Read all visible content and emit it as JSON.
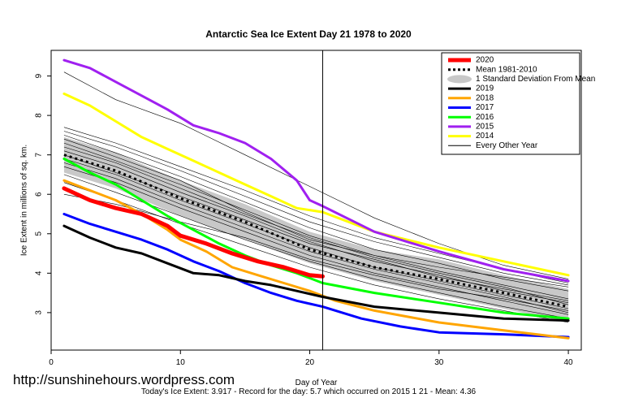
{
  "chart_data": {
    "type": "line",
    "title": "Antarctic Sea Ice Extent Day 21 1978 to 2020",
    "xlabel": "Day of Year",
    "ylabel": "Ice Extent in millions of sq. km.",
    "xlim": [
      0,
      41
    ],
    "ylim": [
      2.05,
      9.65
    ],
    "x_ticks": [
      0,
      10,
      20,
      30,
      40
    ],
    "y_ticks": [
      3,
      4,
      5,
      6,
      7,
      8,
      9
    ],
    "current_day_marker": 21,
    "legend_position": "top-right",
    "legend": [
      {
        "label": "2020",
        "color": "#ff0000",
        "style": "thick"
      },
      {
        "label": "Mean 1981-2010",
        "color": "#000000",
        "style": "dotted"
      },
      {
        "label": "1 Standard Deviation From Mean",
        "color": "#c8c8c8",
        "style": "band"
      },
      {
        "label": "2019",
        "color": "#000000",
        "style": "solid"
      },
      {
        "label": "2018",
        "color": "#ffa500",
        "style": "solid"
      },
      {
        "label": "2017",
        "color": "#0000ff",
        "style": "solid"
      },
      {
        "label": "2016",
        "color": "#00ff00",
        "style": "solid"
      },
      {
        "label": "2015",
        "color": "#a020f0",
        "style": "solid"
      },
      {
        "label": "2014",
        "color": "#ffff00",
        "style": "solid"
      },
      {
        "label": "Every Other Year",
        "color": "#000000",
        "style": "thin"
      }
    ],
    "mean": {
      "x": [
        1,
        5,
        10,
        15,
        20,
        25,
        30,
        35,
        40
      ],
      "y": [
        7.0,
        6.6,
        5.9,
        5.3,
        4.6,
        4.15,
        3.85,
        3.5,
        3.15
      ]
    },
    "std_band": {
      "x": [
        1,
        5,
        10,
        15,
        20,
        25,
        30,
        35,
        40
      ],
      "upper": [
        7.45,
        7.05,
        6.35,
        5.75,
        5.05,
        4.6,
        4.35,
        3.95,
        3.6
      ],
      "lower": [
        6.55,
        6.15,
        5.45,
        4.85,
        4.25,
        3.8,
        3.45,
        3.1,
        2.75
      ]
    },
    "series": [
      {
        "name": "2020",
        "color": "#ff0000",
        "width": 5,
        "x": [
          1,
          3,
          5,
          7,
          9,
          10,
          12,
          14,
          16,
          18,
          20,
          21
        ],
        "y": [
          6.15,
          5.85,
          5.65,
          5.5,
          5.2,
          4.95,
          4.75,
          4.5,
          4.3,
          4.15,
          3.95,
          3.92
        ]
      },
      {
        "name": "2019",
        "color": "#000000",
        "width": 3,
        "x": [
          1,
          3,
          5,
          7,
          9,
          11,
          13,
          15,
          17,
          19,
          21,
          25,
          30,
          35,
          40
        ],
        "y": [
          5.2,
          4.9,
          4.65,
          4.5,
          4.25,
          4.0,
          3.95,
          3.8,
          3.7,
          3.55,
          3.4,
          3.15,
          3.0,
          2.85,
          2.8
        ]
      },
      {
        "name": "2018",
        "color": "#ffa500",
        "width": 3,
        "x": [
          1,
          3,
          5,
          7,
          9,
          10,
          12,
          14,
          16,
          18,
          20,
          22,
          25,
          30,
          35,
          40
        ],
        "y": [
          6.35,
          6.1,
          5.85,
          5.5,
          5.1,
          4.85,
          4.55,
          4.15,
          3.95,
          3.75,
          3.55,
          3.3,
          3.05,
          2.75,
          2.55,
          2.35
        ]
      },
      {
        "name": "2017",
        "color": "#0000ff",
        "width": 3,
        "x": [
          1,
          3,
          5,
          7,
          9,
          11,
          13,
          15,
          17,
          19,
          21,
          24,
          27,
          30,
          35,
          40
        ],
        "y": [
          5.5,
          5.25,
          5.05,
          4.85,
          4.6,
          4.3,
          4.05,
          3.75,
          3.5,
          3.3,
          3.15,
          2.85,
          2.65,
          2.5,
          2.45,
          2.38
        ]
      },
      {
        "name": "2016",
        "color": "#00ff00",
        "width": 3,
        "x": [
          1,
          3,
          5,
          7,
          9,
          11,
          13,
          15,
          17,
          19,
          21,
          25,
          30,
          35,
          40
        ],
        "y": [
          6.9,
          6.55,
          6.25,
          5.85,
          5.45,
          5.1,
          4.75,
          4.45,
          4.2,
          4.0,
          3.75,
          3.5,
          3.25,
          3.0,
          2.85
        ]
      },
      {
        "name": "2015",
        "color": "#a020f0",
        "width": 3,
        "x": [
          1,
          3,
          5,
          7,
          9,
          11,
          13,
          15,
          17,
          19,
          20,
          21,
          25,
          30,
          35,
          40
        ],
        "y": [
          9.4,
          9.2,
          8.85,
          8.5,
          8.15,
          7.75,
          7.55,
          7.3,
          6.9,
          6.35,
          5.85,
          5.7,
          5.05,
          4.55,
          4.1,
          3.8
        ]
      },
      {
        "name": "2014",
        "color": "#ffff00",
        "width": 3,
        "x": [
          1,
          3,
          5,
          7,
          9,
          11,
          13,
          15,
          17,
          19,
          21,
          25,
          30,
          35,
          40
        ],
        "y": [
          8.55,
          8.25,
          7.85,
          7.45,
          7.15,
          6.85,
          6.55,
          6.25,
          5.95,
          5.65,
          5.55,
          5.05,
          4.65,
          4.3,
          3.95
        ]
      }
    ],
    "other_years": [
      {
        "x": [
          1,
          5,
          10,
          15,
          20,
          25,
          30,
          35,
          40
        ],
        "y": [
          7.7,
          7.3,
          6.7,
          6.1,
          5.45,
          4.9,
          4.5,
          4.1,
          3.75
        ]
      },
      {
        "x": [
          1,
          5,
          10,
          15,
          20,
          25,
          30,
          35,
          40
        ],
        "y": [
          7.5,
          7.05,
          6.45,
          5.8,
          5.15,
          4.6,
          4.25,
          3.85,
          3.55
        ]
      },
      {
        "x": [
          1,
          5,
          10,
          15,
          20,
          25,
          30,
          35,
          40
        ],
        "y": [
          7.3,
          6.85,
          6.25,
          5.6,
          4.95,
          4.45,
          4.05,
          3.7,
          3.35
        ]
      },
      {
        "x": [
          1,
          5,
          10,
          15,
          20,
          25,
          30,
          35,
          40
        ],
        "y": [
          7.1,
          6.7,
          6.05,
          5.45,
          4.8,
          4.3,
          3.95,
          3.55,
          3.25
        ]
      },
      {
        "x": [
          1,
          5,
          10,
          15,
          20,
          25,
          30,
          35,
          40
        ],
        "y": [
          6.9,
          6.5,
          5.85,
          5.25,
          4.65,
          4.15,
          3.8,
          3.45,
          3.1
        ]
      },
      {
        "x": [
          1,
          5,
          10,
          15,
          20,
          25,
          30,
          35,
          40
        ],
        "y": [
          6.7,
          6.3,
          5.65,
          5.05,
          4.45,
          4.0,
          3.65,
          3.3,
          2.95
        ]
      },
      {
        "x": [
          1,
          5,
          10,
          15,
          20,
          25,
          30,
          35,
          40
        ],
        "y": [
          6.5,
          6.05,
          5.45,
          4.85,
          4.3,
          3.85,
          3.5,
          3.15,
          2.85
        ]
      },
      {
        "x": [
          1,
          5,
          10,
          15,
          20,
          25,
          30,
          35,
          40
        ],
        "y": [
          6.3,
          5.85,
          5.25,
          4.7,
          4.15,
          3.7,
          3.35,
          3.05,
          2.75
        ]
      },
      {
        "x": [
          1,
          5,
          10,
          15,
          20,
          25,
          30,
          35,
          40
        ],
        "y": [
          7.4,
          6.95,
          6.35,
          5.55,
          4.85,
          4.45,
          4.15,
          3.9,
          3.65
        ]
      },
      {
        "x": [
          1,
          5,
          10,
          15,
          20,
          25,
          30,
          35,
          40
        ],
        "y": [
          7.0,
          6.55,
          5.95,
          5.35,
          4.75,
          4.35,
          3.9,
          3.6,
          3.3
        ]
      },
      {
        "x": [
          1,
          5,
          10,
          15,
          20,
          25,
          30,
          35,
          40
        ],
        "y": [
          6.0,
          5.75,
          5.3,
          4.9,
          4.35,
          3.95,
          3.6,
          3.35,
          3.05
        ]
      },
      {
        "x": [
          1,
          5,
          10,
          15,
          20,
          25,
          30,
          35,
          40
        ],
        "y": [
          9.1,
          8.4,
          7.8,
          7.0,
          6.2,
          5.4,
          4.75,
          4.2,
          3.85
        ]
      },
      {
        "x": [
          1,
          5,
          10,
          15,
          20,
          25,
          30,
          35,
          40
        ],
        "y": [
          7.6,
          7.2,
          6.6,
          5.95,
          5.3,
          4.8,
          4.4,
          4.0,
          3.7
        ]
      },
      {
        "x": [
          1,
          5,
          10,
          15,
          20,
          25,
          30,
          35,
          40
        ],
        "y": [
          7.2,
          6.8,
          6.15,
          5.5,
          4.9,
          4.4,
          4.0,
          3.65,
          3.2
        ]
      },
      {
        "x": [
          1,
          5,
          10,
          15,
          20,
          25,
          30,
          35,
          40
        ],
        "y": [
          6.8,
          6.4,
          5.75,
          5.15,
          4.55,
          4.1,
          3.75,
          3.4,
          3.0
        ]
      }
    ]
  },
  "watermark": "http://sunshinehours.wordpress.com",
  "footer": "Today's Ice Extent: 3.917  - Record for the day: 5.7 which occurred on 2015 1 21  - Mean: 4.36"
}
